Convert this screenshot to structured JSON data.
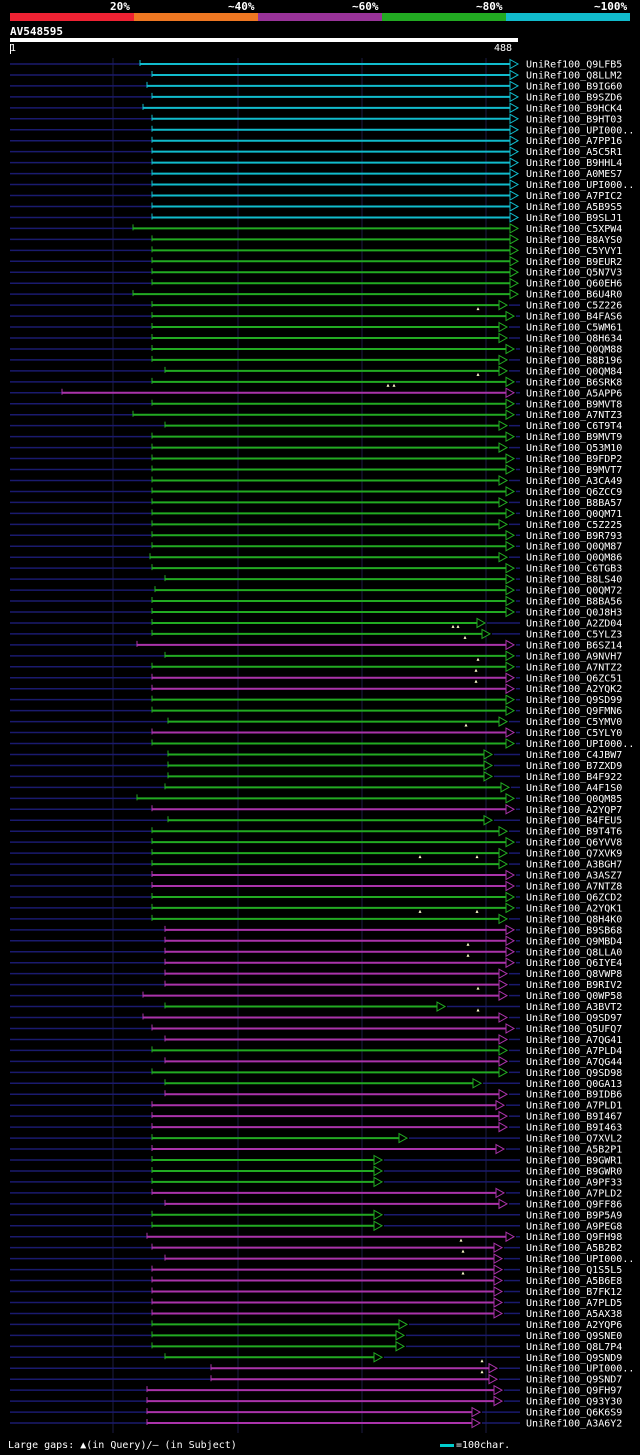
{
  "legend": {
    "segments": [
      {
        "label": "20%",
        "color": "#ee2233"
      },
      {
        "label": "~40%",
        "color": "#ee7722"
      },
      {
        "label": "~60%",
        "color": "#993399"
      },
      {
        "label": "~80%",
        "color": "#22aa22"
      },
      {
        "label": "~100%",
        "color": "#11bbcc"
      }
    ]
  },
  "query": {
    "id": "AV548595",
    "start": "1",
    "end": "488"
  },
  "colors": {
    "cyan": "#11bbcc",
    "green": "#22aa22",
    "magenta": "#aa33aa",
    "navy": "#1a1a6e"
  },
  "hits": [
    {
      "name": "UniRef100_Q9LFB5",
      "color": "cyan",
      "start": 140
    },
    {
      "name": "UniRef100_Q8LLM2",
      "color": "cyan",
      "start": 152
    },
    {
      "name": "UniRef100_B9IG60",
      "color": "cyan",
      "start": 147
    },
    {
      "name": "UniRef100_B9SZD6",
      "color": "cyan",
      "start": 152
    },
    {
      "name": "UniRef100_B9HCK4",
      "color": "cyan",
      "start": 143
    },
    {
      "name": "UniRef100_B9HT03",
      "color": "cyan",
      "start": 152
    },
    {
      "name": "UniRef100_UPI000..",
      "color": "cyan",
      "start": 152
    },
    {
      "name": "UniRef100_A7PP16",
      "color": "cyan",
      "start": 152
    },
    {
      "name": "UniRef100_A5C5R1",
      "color": "cyan",
      "start": 152
    },
    {
      "name": "UniRef100_B9HHL4",
      "color": "cyan",
      "start": 152
    },
    {
      "name": "UniRef100_A0MES7",
      "color": "cyan",
      "start": 152
    },
    {
      "name": "UniRef100_UPI000..",
      "color": "cyan",
      "start": 152
    },
    {
      "name": "UniRef100_A7PIC2",
      "color": "cyan",
      "start": 152
    },
    {
      "name": "UniRef100_A5B9S5",
      "color": "cyan",
      "start": 152
    },
    {
      "name": "UniRef100_B9SLJ1",
      "color": "cyan",
      "start": 152
    },
    {
      "name": "UniRef100_C5XPW4",
      "color": "green",
      "start": 133
    },
    {
      "name": "UniRef100_B8AYS0",
      "color": "green",
      "start": 152
    },
    {
      "name": "UniRef100_C5YVY1",
      "color": "green",
      "start": 152
    },
    {
      "name": "UniRef100_B9EUR2",
      "color": "green",
      "start": 152
    },
    {
      "name": "UniRef100_Q5N7V3",
      "color": "green",
      "start": 152
    },
    {
      "name": "UniRef100_Q60EH6",
      "color": "green",
      "start": 152
    },
    {
      "name": "UniRef100_B6U4R0",
      "color": "green",
      "start": 133
    },
    {
      "name": "UniRef100_C5Z226",
      "color": "green",
      "start": 152,
      "end": 503
    },
    {
      "name": "UniRef100_B4FAS6",
      "color": "green",
      "start": 152,
      "end": 510,
      "marks": [
        478
      ]
    },
    {
      "name": "UniRef100_C5WM61",
      "color": "green",
      "start": 152,
      "end": 503
    },
    {
      "name": "UniRef100_Q8H634",
      "color": "green",
      "start": 152,
      "end": 503
    },
    {
      "name": "UniRef100_Q0QM88",
      "color": "green",
      "start": 152,
      "end": 510
    },
    {
      "name": "UniRef100_B8B196",
      "color": "green",
      "start": 152,
      "end": 503
    },
    {
      "name": "UniRef100_Q0QM84",
      "color": "green",
      "start": 165,
      "end": 503
    },
    {
      "name": "UniRef100_B6SRK8",
      "color": "green",
      "start": 152,
      "end": 510,
      "marks": [
        478
      ]
    },
    {
      "name": "UniRef100_A5APP6",
      "color": "magenta",
      "start": 62,
      "end": 510,
      "marks": [
        388,
        394
      ]
    },
    {
      "name": "UniRef100_B9MVT8",
      "color": "green",
      "start": 152,
      "end": 510
    },
    {
      "name": "UniRef100_A7NTZ3",
      "color": "green",
      "start": 133,
      "end": 510
    },
    {
      "name": "UniRef100_C6T9T4",
      "color": "green",
      "start": 165,
      "end": 503
    },
    {
      "name": "UniRef100_B9MVT9",
      "color": "green",
      "start": 152,
      "end": 510
    },
    {
      "name": "UniRef100_Q53M10",
      "color": "green",
      "start": 152,
      "end": 503
    },
    {
      "name": "UniRef100_B9FDP2",
      "color": "green",
      "start": 152,
      "end": 510
    },
    {
      "name": "UniRef100_B9MVT7",
      "color": "green",
      "start": 152,
      "end": 510
    },
    {
      "name": "UniRef100_A3CA49",
      "color": "green",
      "start": 152,
      "end": 503
    },
    {
      "name": "UniRef100_Q6ZCC9",
      "color": "green",
      "start": 152,
      "end": 510
    },
    {
      "name": "UniRef100_B8BA57",
      "color": "green",
      "start": 152,
      "end": 503
    },
    {
      "name": "UniRef100_Q0QM71",
      "color": "green",
      "start": 152,
      "end": 510
    },
    {
      "name": "UniRef100_C5Z225",
      "color": "green",
      "start": 152,
      "end": 503
    },
    {
      "name": "UniRef100_B9R793",
      "color": "green",
      "start": 152,
      "end": 510
    },
    {
      "name": "UniRef100_Q0QM87",
      "color": "green",
      "start": 152,
      "end": 510
    },
    {
      "name": "UniRef100_Q0QM86",
      "color": "green",
      "start": 150,
      "end": 503
    },
    {
      "name": "UniRef100_C6TGB3",
      "color": "green",
      "start": 152,
      "end": 510
    },
    {
      "name": "UniRef100_B8LS40",
      "color": "green",
      "start": 165,
      "end": 510
    },
    {
      "name": "UniRef100_Q0QM72",
      "color": "green",
      "start": 155,
      "end": 510
    },
    {
      "name": "UniRef100_B8BA56",
      "color": "green",
      "start": 152,
      "end": 510
    },
    {
      "name": "UniRef100_Q0J8H3",
      "color": "green",
      "start": 152,
      "end": 510
    },
    {
      "name": "UniRef100_A2ZD04",
      "color": "green",
      "start": 152,
      "end": 481
    },
    {
      "name": "UniRef100_C5YLZ3",
      "color": "green",
      "start": 152,
      "end": 486,
      "marks": [
        453,
        458
      ]
    },
    {
      "name": "UniRef100_B6SZ14",
      "color": "magenta",
      "start": 137,
      "end": 510,
      "marks": [
        465
      ]
    },
    {
      "name": "UniRef100_A9NVH7",
      "color": "green",
      "start": 165,
      "end": 510
    },
    {
      "name": "UniRef100_A7NTZ2",
      "color": "green",
      "start": 152,
      "end": 510,
      "marks": [
        478
      ]
    },
    {
      "name": "UniRef100_Q6ZC51",
      "color": "magenta",
      "start": 152,
      "end": 510,
      "marks": [
        476
      ]
    },
    {
      "name": "UniRef100_A2YQK2",
      "color": "magenta",
      "start": 152,
      "end": 510,
      "marks": [
        476
      ]
    },
    {
      "name": "UniRef100_Q9SD99",
      "color": "green",
      "start": 152,
      "end": 510
    },
    {
      "name": "UniRef100_Q9FMN6",
      "color": "green",
      "start": 152,
      "end": 510
    },
    {
      "name": "UniRef100_C5YMV0",
      "color": "green",
      "start": 168,
      "end": 503
    },
    {
      "name": "UniRef100_C5YLY0",
      "color": "magenta",
      "start": 152,
      "end": 510,
      "marks": [
        466
      ]
    },
    {
      "name": "UniRef100_UPI000..",
      "color": "green",
      "start": 152,
      "end": 510
    },
    {
      "name": "UniRef100_C4JBW7",
      "color": "green",
      "start": 168,
      "end": 488
    },
    {
      "name": "UniRef100_B7ZXD9",
      "color": "green",
      "start": 168,
      "end": 488
    },
    {
      "name": "UniRef100_B4F922",
      "color": "green",
      "start": 168,
      "end": 488
    },
    {
      "name": "UniRef100_A4F1S0",
      "color": "green",
      "start": 165,
      "end": 505
    },
    {
      "name": "UniRef100_Q0QM85",
      "color": "green",
      "start": 137,
      "end": 510
    },
    {
      "name": "UniRef100_A2YQP7",
      "color": "magenta",
      "start": 152,
      "end": 510
    },
    {
      "name": "UniRef100_B4FEU5",
      "color": "green",
      "start": 168,
      "end": 488
    },
    {
      "name": "UniRef100_B9T4T6",
      "color": "green",
      "start": 152,
      "end": 503
    },
    {
      "name": "UniRef100_Q6YVV8",
      "color": "green",
      "start": 152,
      "end": 510
    },
    {
      "name": "UniRef100_Q7XVK9",
      "color": "green",
      "start": 152,
      "end": 503
    },
    {
      "name": "UniRef100_A3BGH7",
      "color": "green",
      "start": 152,
      "end": 503,
      "marks": [
        420,
        477
      ]
    },
    {
      "name": "UniRef100_A3ASZ7",
      "color": "magenta",
      "start": 152,
      "end": 510
    },
    {
      "name": "UniRef100_A7NTZ8",
      "color": "magenta",
      "start": 152,
      "end": 510
    },
    {
      "name": "UniRef100_Q6ZCD2",
      "color": "green",
      "start": 152,
      "end": 510
    },
    {
      "name": "UniRef100_A2YQK1",
      "color": "green",
      "start": 152,
      "end": 510
    },
    {
      "name": "UniRef100_Q8H4K0",
      "color": "green",
      "start": 152,
      "end": 503,
      "marks": [
        420,
        477
      ]
    },
    {
      "name": "UniRef100_B9SB68",
      "color": "magenta",
      "start": 165,
      "end": 510
    },
    {
      "name": "UniRef100_Q9MBD4",
      "color": "magenta",
      "start": 165,
      "end": 510
    },
    {
      "name": "UniRef100_Q8LLA0",
      "color": "magenta",
      "start": 165,
      "end": 510,
      "marks": [
        468
      ]
    },
    {
      "name": "UniRef100_Q6IYE4",
      "color": "magenta",
      "start": 165,
      "end": 510,
      "marks": [
        468
      ]
    },
    {
      "name": "UniRef100_Q8VWP8",
      "color": "magenta",
      "start": 165,
      "end": 503
    },
    {
      "name": "UniRef100_B9RIV2",
      "color": "magenta",
      "start": 165,
      "end": 503
    },
    {
      "name": "UniRef100_Q0WP58",
      "color": "magenta",
      "start": 143,
      "end": 503,
      "marks": [
        478
      ]
    },
    {
      "name": "UniRef100_A3BVT2",
      "color": "green",
      "start": 165,
      "end": 441
    },
    {
      "name": "UniRef100_Q9SD97",
      "color": "magenta",
      "start": 143,
      "end": 503,
      "marks": [
        478
      ]
    },
    {
      "name": "UniRef100_Q5UFQ7",
      "color": "magenta",
      "start": 152,
      "end": 510
    },
    {
      "name": "UniRef100_A7QG41",
      "color": "magenta",
      "start": 165,
      "end": 503
    },
    {
      "name": "UniRef100_A7PLD4",
      "color": "green",
      "start": 152,
      "end": 503
    },
    {
      "name": "UniRef100_A7QG44",
      "color": "magenta",
      "start": 165,
      "end": 503
    },
    {
      "name": "UniRef100_Q9SD98",
      "color": "green",
      "start": 152,
      "end": 503
    },
    {
      "name": "UniRef100_Q0GA13",
      "color": "green",
      "start": 165,
      "end": 477
    },
    {
      "name": "UniRef100_B9IDB6",
      "color": "magenta",
      "start": 165,
      "end": 503
    },
    {
      "name": "UniRef100_A7PLD1",
      "color": "magenta",
      "start": 152,
      "end": 500
    },
    {
      "name": "UniRef100_B9I467",
      "color": "magenta",
      "start": 152,
      "end": 503
    },
    {
      "name": "UniRef100_B9I463",
      "color": "magenta",
      "start": 152,
      "end": 503
    },
    {
      "name": "UniRef100_Q7XVL2",
      "color": "green",
      "start": 152,
      "end": 403
    },
    {
      "name": "UniRef100_A5B2P1",
      "color": "magenta",
      "start": 152,
      "end": 500
    },
    {
      "name": "UniRef100_B9GWR1",
      "color": "green",
      "start": 152,
      "end": 378
    },
    {
      "name": "UniRef100_B9GWR0",
      "color": "green",
      "start": 152,
      "end": 378
    },
    {
      "name": "UniRef100_A9PF33",
      "color": "green",
      "start": 152,
      "end": 378
    },
    {
      "name": "UniRef100_A7PLD2",
      "color": "magenta",
      "start": 152,
      "end": 500
    },
    {
      "name": "UniRef100_Q9FF86",
      "color": "magenta",
      "start": 165,
      "end": 503
    },
    {
      "name": "UniRef100_B9P5A9",
      "color": "green",
      "start": 152,
      "end": 378
    },
    {
      "name": "UniRef100_A9PEG8",
      "color": "green",
      "start": 152,
      "end": 378
    },
    {
      "name": "UniRef100_Q9FH98",
      "color": "magenta",
      "start": 147,
      "end": 510
    },
    {
      "name": "UniRef100_A5B2B2",
      "color": "magenta",
      "start": 152,
      "end": 498,
      "marks": [
        461
      ]
    },
    {
      "name": "UniRef100_UPI000..",
      "color": "magenta",
      "start": 165,
      "end": 498,
      "marks": [
        463
      ]
    },
    {
      "name": "UniRef100_Q1S5L5",
      "color": "magenta",
      "start": 152,
      "end": 498
    },
    {
      "name": "UniRef100_A5B6E8",
      "color": "magenta",
      "start": 152,
      "end": 498,
      "marks": [
        463
      ]
    },
    {
      "name": "UniRef100_B7FK12",
      "color": "magenta",
      "start": 152,
      "end": 498
    },
    {
      "name": "UniRef100_A7PLD5",
      "color": "magenta",
      "start": 152,
      "end": 498
    },
    {
      "name": "UniRef100_A5AX38",
      "color": "magenta",
      "start": 152,
      "end": 498
    },
    {
      "name": "UniRef100_A2YQP6",
      "color": "green",
      "start": 152,
      "end": 403
    },
    {
      "name": "UniRef100_Q9SNE0",
      "color": "green",
      "start": 152,
      "end": 400
    },
    {
      "name": "UniRef100_Q8L7P4",
      "color": "green",
      "start": 152,
      "end": 400
    },
    {
      "name": "UniRef100_Q9SND9",
      "color": "green",
      "start": 165,
      "end": 378
    },
    {
      "name": "UniRef100_UPI000..",
      "color": "magenta",
      "start": 211,
      "end": 493,
      "marks": [
        482
      ]
    },
    {
      "name": "UniRef100_Q9SND7",
      "color": "magenta",
      "start": 211,
      "end": 493,
      "marks": [
        482
      ]
    },
    {
      "name": "UniRef100_Q9FH97",
      "color": "magenta",
      "start": 147,
      "end": 498
    },
    {
      "name": "UniRef100_Q93Y30",
      "color": "magenta",
      "start": 147,
      "end": 498
    },
    {
      "name": "UniRef100_Q6K6S9",
      "color": "magenta",
      "start": 147,
      "end": 476
    },
    {
      "name": "UniRef100_A3A6Y2",
      "color": "magenta",
      "start": 147,
      "end": 476
    }
  ],
  "footer": {
    "text": "Large gaps: ▲(in Query)/– (in Subject)",
    "scale_text": "=100char."
  }
}
